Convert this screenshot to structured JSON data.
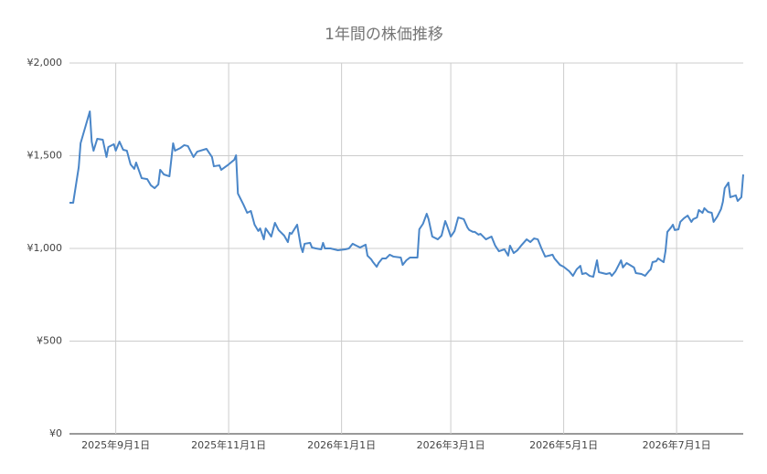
{
  "chart_data": {
    "type": "line",
    "title": "1年間の株価推移",
    "x": [
      "2025-08-07",
      "2025-08-09",
      "2025-08-12",
      "2025-08-13",
      "2025-08-18",
      "2025-08-19",
      "2025-08-20",
      "2025-08-22",
      "2025-08-25",
      "2025-08-27",
      "2025-08-28",
      "2025-08-31",
      "2025-09-01",
      "2025-09-03",
      "2025-09-05",
      "2025-09-07",
      "2025-09-09",
      "2025-09-11",
      "2025-09-12",
      "2025-09-15",
      "2025-09-18",
      "2025-09-20",
      "2025-09-22",
      "2025-09-24",
      "2025-09-25",
      "2025-09-27",
      "2025-09-30",
      "2025-10-02",
      "2025-10-03",
      "2025-10-06",
      "2025-10-08",
      "2025-10-10",
      "2025-10-13",
      "2025-10-15",
      "2025-10-20",
      "2025-10-23",
      "2025-10-24",
      "2025-10-27",
      "2025-10-28",
      "2025-11-01",
      "2025-11-04",
      "2025-11-05",
      "2025-11-06",
      "2025-11-09",
      "2025-11-11",
      "2025-11-13",
      "2025-11-15",
      "2025-11-17",
      "2025-11-18",
      "2025-11-20",
      "2025-11-21",
      "2025-11-24",
      "2025-11-26",
      "2025-11-28",
      "2025-12-01",
      "2025-12-03",
      "2025-12-04",
      "2025-12-05",
      "2025-12-08",
      "2025-12-10",
      "2025-12-11",
      "2025-12-12",
      "2025-12-15",
      "2025-12-16",
      "2025-12-18",
      "2025-12-21",
      "2025-12-22",
      "2025-12-23",
      "2025-12-26",
      "2025-12-30",
      "2026-01-03",
      "2026-01-05",
      "2026-01-07",
      "2026-01-09",
      "2026-01-11",
      "2026-01-14",
      "2026-01-15",
      "2026-01-17",
      "2026-01-18",
      "2026-01-20",
      "2026-01-21",
      "2026-01-23",
      "2026-01-25",
      "2026-01-27",
      "2026-01-29",
      "2026-02-02",
      "2026-02-03",
      "2026-02-05",
      "2026-02-07",
      "2026-02-11",
      "2026-02-12",
      "2026-02-14",
      "2026-02-16",
      "2026-02-17",
      "2026-02-19",
      "2026-02-22",
      "2026-02-24",
      "2026-02-26",
      "2026-02-27",
      "2026-03-01",
      "2026-03-03",
      "2026-03-05",
      "2026-03-08",
      "2026-03-10",
      "2026-03-11",
      "2026-03-13",
      "2026-03-14",
      "2026-03-16",
      "2026-03-17",
      "2026-03-20",
      "2026-03-23",
      "2026-03-25",
      "2026-03-27",
      "2026-03-30",
      "2026-04-01",
      "2026-04-02",
      "2026-04-04",
      "2026-04-06",
      "2026-04-08",
      "2026-04-11",
      "2026-04-13",
      "2026-04-15",
      "2026-04-17",
      "2026-04-19",
      "2026-04-21",
      "2026-04-25",
      "2026-04-26",
      "2026-04-29",
      "2026-05-01",
      "2026-05-04",
      "2026-05-06",
      "2026-05-08",
      "2026-05-10",
      "2026-05-11",
      "2026-05-13",
      "2026-05-15",
      "2026-05-17",
      "2026-05-19",
      "2026-05-20",
      "2026-05-24",
      "2026-05-26",
      "2026-05-27",
      "2026-05-29",
      "2026-05-31",
      "2026-06-01",
      "2026-06-02",
      "2026-06-04",
      "2026-06-08",
      "2026-06-09",
      "2026-06-12",
      "2026-06-14",
      "2026-06-16",
      "2026-06-17",
      "2026-06-18",
      "2026-06-20",
      "2026-06-21",
      "2026-06-24",
      "2026-06-25",
      "2026-06-26",
      "2026-06-28",
      "2026-06-29",
      "2026-06-30",
      "2026-07-02",
      "2026-07-03",
      "2026-07-05",
      "2026-07-07",
      "2026-07-09",
      "2026-07-10",
      "2026-07-12",
      "2026-07-13",
      "2026-07-15",
      "2026-07-16",
      "2026-07-18",
      "2026-07-20",
      "2026-07-21",
      "2026-07-23",
      "2026-07-25",
      "2026-07-26",
      "2026-07-27",
      "2026-07-29",
      "2026-07-30",
      "2026-08-02",
      "2026-08-03",
      "2026-08-05",
      "2026-08-06"
    ],
    "series": [
      {
        "color": "#4a86c8",
        "values": [
          1246,
          1246,
          1438,
          1567,
          1739,
          1576,
          1527,
          1591,
          1586,
          1493,
          1547,
          1562,
          1527,
          1576,
          1532,
          1527,
          1453,
          1429,
          1463,
          1379,
          1374,
          1340,
          1325,
          1345,
          1424,
          1399,
          1389,
          1567,
          1527,
          1542,
          1557,
          1552,
          1493,
          1522,
          1537,
          1493,
          1443,
          1448,
          1424,
          1453,
          1478,
          1502,
          1296,
          1236,
          1192,
          1202,
          1128,
          1094,
          1108,
          1049,
          1108,
          1064,
          1138,
          1099,
          1069,
          1034,
          1084,
          1079,
          1128,
          1010,
          980,
          1025,
          1030,
          1005,
          1000,
          995,
          1030,
          1000,
          1000,
          990,
          995,
          1000,
          1025,
          1015,
          1005,
          1020,
          961,
          941,
          926,
          901,
          921,
          946,
          946,
          966,
          956,
          951,
          911,
          936,
          951,
          951,
          1103,
          1133,
          1187,
          1158,
          1064,
          1049,
          1069,
          1148,
          1123,
          1064,
          1093,
          1167,
          1158,
          1113,
          1099,
          1089,
          1089,
          1074,
          1079,
          1049,
          1064,
          1015,
          985,
          995,
          961,
          1015,
          975,
          990,
          1015,
          1049,
          1034,
          1054,
          1049,
          1000,
          956,
          966,
          946,
          911,
          901,
          877,
          852,
          887,
          906,
          862,
          867,
          852,
          847,
          936,
          872,
          862,
          867,
          852,
          877,
          916,
          936,
          897,
          921,
          897,
          867,
          862,
          852,
          877,
          887,
          926,
          931,
          946,
          926,
          985,
          1089,
          1113,
          1128,
          1099,
          1103,
          1143,
          1163,
          1177,
          1143,
          1158,
          1167,
          1207,
          1192,
          1217,
          1197,
          1192,
          1143,
          1172,
          1212,
          1251,
          1325,
          1355,
          1276,
          1286,
          1256,
          1276,
          1399
        ]
      }
    ],
    "xlim": [
      "2025-08-07",
      "2026-08-06"
    ],
    "xticks": [
      {
        "value": "2025-09-01",
        "label": "2025年9月1日"
      },
      {
        "value": "2025-11-01",
        "label": "2025年11月1日"
      },
      {
        "value": "2026-01-01",
        "label": "2026年1月1日"
      },
      {
        "value": "2026-03-01",
        "label": "2026年3月1日"
      },
      {
        "value": "2026-05-01",
        "label": "2026年5月1日"
      },
      {
        "value": "2026-07-01",
        "label": "2026年7月1日"
      }
    ],
    "ylim": [
      0,
      2000
    ],
    "yticks": [
      {
        "value": 0,
        "label": "¥0"
      },
      {
        "value": 500,
        "label": "¥500"
      },
      {
        "value": 1000,
        "label": "¥1,000"
      },
      {
        "value": 1500,
        "label": "¥1,500"
      },
      {
        "value": 2000,
        "label": "¥2,000"
      }
    ],
    "grid": true
  }
}
